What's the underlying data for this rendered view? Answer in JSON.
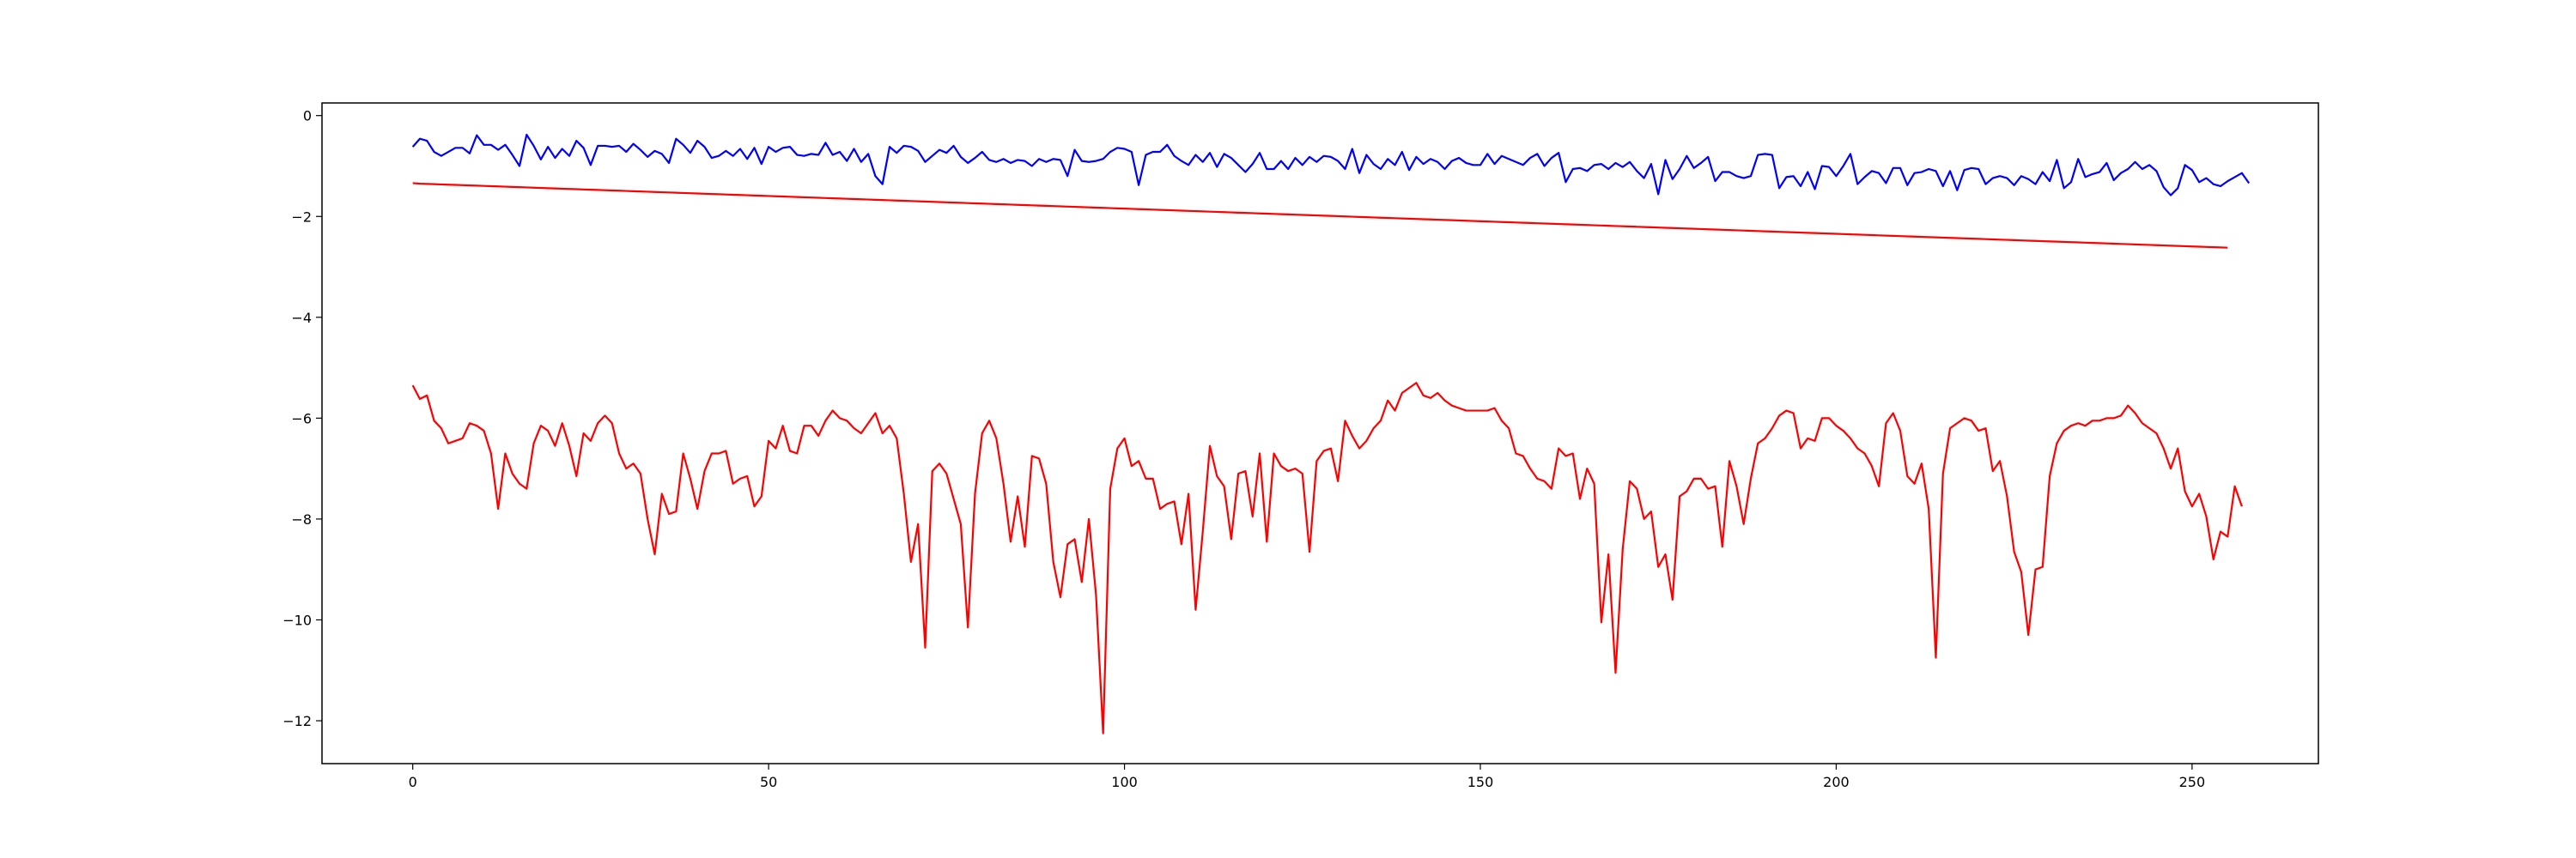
{
  "chart_data": {
    "type": "line",
    "title": "",
    "xlabel": "",
    "ylabel": "",
    "grid": false,
    "legend": "none",
    "xlim": [
      -12.75,
      267.75
    ],
    "ylim": [
      -12.85,
      0.25
    ],
    "xticks": [
      0,
      50,
      100,
      150,
      200,
      250
    ],
    "yticks": [
      0,
      -2,
      -4,
      -6,
      -8,
      -10,
      -12
    ],
    "xtick_labels": [
      "0",
      "50",
      "100",
      "150",
      "200",
      "250"
    ],
    "ytick_labels": [
      "0",
      "−2",
      "−4",
      "−6",
      "−8",
      "−10",
      "−12"
    ],
    "x": {
      "start": 0,
      "end": 255,
      "step": 1
    },
    "series": [
      {
        "color": "#0000ff",
        "values": [
          -0.62,
          -0.46,
          -0.5,
          -0.72,
          -0.8,
          -0.72,
          -0.64,
          -0.64,
          -0.75,
          -0.39,
          -0.58,
          -0.58,
          -0.68,
          -0.58,
          -0.78,
          -1.0,
          -0.38,
          -0.6,
          -0.87,
          -0.62,
          -0.84,
          -0.66,
          -0.8,
          -0.5,
          -0.64,
          -0.98,
          -0.6,
          -0.6,
          -0.62,
          -0.6,
          -0.72,
          -0.56,
          -0.68,
          -0.82,
          -0.7,
          -0.76,
          -0.94,
          -0.46,
          -0.58,
          -0.74,
          -0.5,
          -0.62,
          -0.84,
          -0.8,
          -0.7,
          -0.8,
          -0.66,
          -0.86,
          -0.64,
          -0.96,
          -0.62,
          -0.72,
          -0.64,
          -0.62,
          -0.78,
          -0.8,
          -0.76,
          -0.78,
          -0.54,
          -0.78,
          -0.72,
          -0.9,
          -0.66,
          -0.92,
          -0.76,
          -1.2,
          -1.36,
          -0.62,
          -0.74,
          -0.6,
          -0.62,
          -0.7,
          -0.92,
          -0.8,
          -0.68,
          -0.74,
          -0.6,
          -0.82,
          -0.94,
          -0.84,
          -0.72,
          -0.88,
          -0.92,
          -0.86,
          -0.94,
          -0.88,
          -0.9,
          -1.0,
          -0.86,
          -0.92,
          -0.86,
          -0.88,
          -1.2,
          -0.68,
          -0.9,
          -0.92,
          -0.9,
          -0.86,
          -0.72,
          -0.64,
          -0.66,
          -0.72,
          -1.38,
          -0.78,
          -0.72,
          -0.72,
          -0.58,
          -0.8,
          -0.9,
          -0.98,
          -0.78,
          -0.92,
          -0.74,
          -1.02,
          -0.76,
          -0.84,
          -0.98,
          -1.12,
          -0.96,
          -0.74,
          -1.06,
          -1.06,
          -0.9,
          -1.06,
          -0.84,
          -0.98,
          -0.82,
          -0.92,
          -0.8,
          -0.82,
          -0.9,
          -1.06,
          -0.66,
          -1.14,
          -0.78,
          -0.96,
          -1.06,
          -0.86,
          -0.98,
          -0.72,
          -1.08,
          -0.82,
          -0.96,
          -0.86,
          -0.92,
          -1.06,
          -0.9,
          -0.84,
          -0.94,
          -0.98,
          -0.98,
          -0.76,
          -0.96,
          -0.8,
          -0.86,
          -0.92,
          -0.98,
          -0.84,
          -0.76,
          -1.0,
          -0.84,
          -0.74,
          -1.32,
          -1.06,
          -1.04,
          -1.1,
          -0.98,
          -0.96,
          -1.06,
          -0.94,
          -1.02,
          -0.92,
          -1.1,
          -1.24,
          -0.96,
          -1.56,
          -0.88,
          -1.26,
          -1.06,
          -0.8,
          -1.04,
          -0.94,
          -0.82,
          -1.3,
          -1.12,
          -1.12,
          -1.2,
          -1.24,
          -1.2,
          -0.78,
          -0.76,
          -0.78,
          -1.44,
          -1.22,
          -1.2,
          -1.4,
          -1.12,
          -1.46,
          -1.0,
          -1.02,
          -1.2,
          -1.0,
          -0.76,
          -1.36,
          -1.22,
          -1.1,
          -1.14,
          -1.34,
          -1.04,
          -1.04,
          -1.38,
          -1.14,
          -1.12,
          -1.06,
          -1.1,
          -1.4,
          -1.1,
          -1.48,
          -1.08,
          -1.04,
          -1.06,
          -1.36,
          -1.24,
          -1.2,
          -1.24,
          -1.38,
          -1.2,
          -1.26,
          -1.36,
          -1.12,
          -1.3,
          -0.88,
          -1.44,
          -1.32,
          -0.86,
          -1.22,
          -1.16,
          -1.12,
          -0.94,
          -1.28,
          -1.14,
          -1.06,
          -0.92,
          -1.06,
          -0.98,
          -1.1,
          -1.42,
          -1.58,
          -1.44,
          -0.98,
          -1.08,
          -1.32,
          -1.24,
          -1.36,
          -1.4,
          -1.3,
          -1.22,
          -1.14,
          -1.34
        ]
      },
      {
        "color": "#ff0000",
        "values": [
          -1.34,
          -1.35,
          -1.355,
          -1.36,
          -1.365,
          -1.37,
          -1.375,
          -1.38,
          -1.385,
          -1.39,
          -1.395,
          -1.4,
          -1.405,
          -1.41,
          -1.415,
          -1.42,
          -1.425,
          -1.43,
          -1.435,
          -1.44,
          -1.445,
          -1.45,
          -1.455,
          -1.46,
          -1.465,
          -1.47,
          -1.475,
          -1.48,
          -1.485,
          -1.49,
          -1.495,
          -1.5,
          -1.505,
          -1.51,
          -1.515,
          -1.52,
          -1.525,
          -1.53,
          -1.535,
          -1.54,
          -1.545,
          -1.55,
          -1.555,
          -1.56,
          -1.565,
          -1.57,
          -1.575,
          -1.58,
          -1.585,
          -1.59,
          -1.595,
          -1.6,
          -1.605,
          -1.61,
          -1.615,
          -1.62,
          -1.625,
          -1.63,
          -1.635,
          -1.64,
          -1.645,
          -1.65,
          -1.655,
          -1.66,
          -1.665,
          -1.67,
          -1.675,
          -1.68,
          -1.685,
          -1.69,
          -1.695,
          -1.7,
          -1.705,
          -1.71,
          -1.715,
          -1.72,
          -1.725,
          -1.73,
          -1.735,
          -1.74,
          -1.745,
          -1.75,
          -1.755,
          -1.76,
          -1.765,
          -1.77,
          -1.775,
          -1.78,
          -1.785,
          -1.79,
          -1.795,
          -1.8,
          -1.805,
          -1.81,
          -1.815,
          -1.82,
          -1.825,
          -1.83,
          -1.835,
          -1.84,
          -1.845,
          -1.85,
          -1.855,
          -1.86,
          -1.865,
          -1.87,
          -1.875,
          -1.88,
          -1.885,
          -1.89,
          -1.895,
          -1.9,
          -1.905,
          -1.91,
          -1.915,
          -1.92,
          -1.925,
          -1.93,
          -1.935,
          -1.94,
          -1.945,
          -1.95,
          -1.955,
          -1.96,
          -1.965,
          -1.97,
          -1.975,
          -1.98,
          -1.985,
          -1.99,
          -1.995,
          -2.0,
          -2.005,
          -2.01,
          -2.015,
          -2.02,
          -2.025,
          -2.03,
          -2.035,
          -2.04,
          -2.045,
          -2.05,
          -2.055,
          -2.06,
          -2.065,
          -2.07,
          -2.075,
          -2.08,
          -2.085,
          -2.09,
          -2.095,
          -2.1,
          -2.105,
          -2.11,
          -2.115,
          -2.12,
          -2.125,
          -2.13,
          -2.135,
          -2.14,
          -2.145,
          -2.15,
          -2.155,
          -2.16,
          -2.165,
          -2.17,
          -2.175,
          -2.18,
          -2.185,
          -2.19,
          -2.195,
          -2.2,
          -2.205,
          -2.21,
          -2.215,
          -2.22,
          -2.225,
          -2.23,
          -2.235,
          -2.24,
          -2.245,
          -2.25,
          -2.255,
          -2.26,
          -2.265,
          -2.27,
          -2.275,
          -2.28,
          -2.285,
          -2.29,
          -2.295,
          -2.3,
          -2.305,
          -2.31,
          -2.315,
          -2.32,
          -2.325,
          -2.33,
          -2.335,
          -2.34,
          -2.345,
          -2.35,
          -2.355,
          -2.36,
          -2.365,
          -2.37,
          -2.375,
          -2.38,
          -2.385,
          -2.39,
          -2.395,
          -2.4,
          -2.405,
          -2.41,
          -2.415,
          -2.42,
          -2.425,
          -2.43,
          -2.435,
          -2.44,
          -2.445,
          -2.45,
          -2.455,
          -2.46,
          -2.465,
          -2.47,
          -2.475,
          -2.48,
          -2.485,
          -2.49,
          -2.495,
          -2.5,
          -2.505,
          -2.51,
          -2.515,
          -2.52,
          -2.525,
          -2.53,
          -2.535,
          -2.54,
          -2.545,
          -2.55,
          -2.555,
          -2.56,
          -2.565,
          -2.57,
          -2.575,
          -2.58,
          -2.585,
          -2.59,
          -2.595,
          -2.6,
          -2.605,
          -2.61,
          -2.615,
          -2.62
        ]
      },
      {
        "color": "#ff0000",
        "values": [
          -5.35,
          -5.62,
          -5.55,
          -6.05,
          -6.2,
          -6.5,
          -6.45,
          -6.4,
          -6.1,
          -6.15,
          -6.25,
          -6.7,
          -7.8,
          -6.7,
          -7.1,
          -7.3,
          -7.4,
          -6.5,
          -6.15,
          -6.25,
          -6.55,
          -6.1,
          -6.55,
          -7.15,
          -6.3,
          -6.45,
          -6.1,
          -5.95,
          -6.1,
          -6.7,
          -7.0,
          -6.9,
          -7.1,
          -8.0,
          -8.7,
          -7.5,
          -7.9,
          -7.85,
          -6.7,
          -7.2,
          -7.8,
          -7.05,
          -6.7,
          -6.7,
          -6.65,
          -7.3,
          -7.2,
          -7.15,
          -7.75,
          -7.55,
          -6.45,
          -6.6,
          -6.15,
          -6.65,
          -6.7,
          -6.15,
          -6.15,
          -6.35,
          -6.05,
          -5.85,
          -6.0,
          -6.05,
          -6.2,
          -6.3,
          -6.1,
          -5.9,
          -6.3,
          -6.15,
          -6.4,
          -7.5,
          -8.85,
          -8.1,
          -10.55,
          -7.05,
          -6.9,
          -7.1,
          -7.6,
          -8.1,
          -10.15,
          -7.5,
          -6.3,
          -6.05,
          -6.4,
          -7.3,
          -8.45,
          -7.55,
          -8.55,
          -6.75,
          -6.8,
          -7.3,
          -8.85,
          -9.55,
          -8.5,
          -8.4,
          -9.25,
          -8.0,
          -9.5,
          -12.25,
          -7.4,
          -6.6,
          -6.4,
          -6.95,
          -6.85,
          -7.2,
          -7.2,
          -7.8,
          -7.7,
          -7.65,
          -8.5,
          -7.5,
          -9.8,
          -8.25,
          -6.55,
          -7.15,
          -7.35,
          -8.4,
          -7.1,
          -7.05,
          -7.95,
          -6.7,
          -8.45,
          -6.7,
          -6.95,
          -7.05,
          -7.0,
          -7.1,
          -8.65,
          -6.85,
          -6.65,
          -6.6,
          -7.25,
          -6.05,
          -6.35,
          -6.6,
          -6.45,
          -6.2,
          -6.05,
          -5.65,
          -5.85,
          -5.5,
          -5.4,
          -5.3,
          -5.55,
          -5.6,
          -5.5,
          -5.65,
          -5.75,
          -5.8,
          -5.85,
          -5.85,
          -5.85,
          -5.85,
          -5.8,
          -6.05,
          -6.2,
          -6.7,
          -6.75,
          -7.0,
          -7.2,
          -7.25,
          -7.4,
          -6.6,
          -6.75,
          -6.7,
          -7.6,
          -7.0,
          -7.3,
          -10.05,
          -8.7,
          -11.05,
          -8.6,
          -7.25,
          -7.4,
          -8.0,
          -7.85,
          -8.95,
          -8.7,
          -9.6,
          -7.55,
          -7.45,
          -7.2,
          -7.2,
          -7.4,
          -7.35,
          -8.55,
          -6.85,
          -7.35,
          -8.1,
          -7.2,
          -6.5,
          -6.4,
          -6.2,
          -5.95,
          -5.85,
          -5.9,
          -6.6,
          -6.4,
          -6.45,
          -6.0,
          -6.0,
          -6.15,
          -6.25,
          -6.4,
          -6.6,
          -6.7,
          -6.95,
          -7.35,
          -6.1,
          -5.9,
          -6.25,
          -7.15,
          -7.3,
          -6.9,
          -7.8,
          -10.75,
          -7.1,
          -6.2,
          -6.1,
          -6.0,
          -6.05,
          -6.25,
          -6.2,
          -7.05,
          -6.85,
          -7.55,
          -8.65,
          -9.05,
          -10.3,
          -9.0,
          -8.95,
          -7.15,
          -6.5,
          -6.25,
          -6.15,
          -6.1,
          -6.15,
          -6.05,
          -6.05,
          -6.0,
          -6.0,
          -5.95,
          -5.75,
          -5.9,
          -6.1,
          -6.2,
          -6.3,
          -6.6,
          -7.0,
          -6.6,
          -7.45,
          -7.75,
          -7.5,
          -7.95,
          -8.8,
          -8.25,
          -8.35,
          -7.35,
          -7.75
        ]
      }
    ]
  }
}
